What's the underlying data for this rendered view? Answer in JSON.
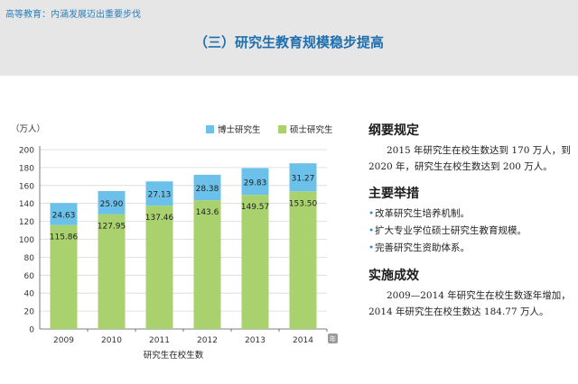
{
  "header": {
    "breadcrumb": "高等教育：内涵发展迈出重要步伐",
    "title": "（三）研究生教育规模稳步提高"
  },
  "chart_data": {
    "type": "bar",
    "stacked": true,
    "ylabel": "（万人）",
    "xlabel": "研究生在校生数",
    "ylim": [
      0,
      200
    ],
    "yticks": [
      0,
      20,
      40,
      60,
      80,
      100,
      120,
      140,
      160,
      180,
      200
    ],
    "categories": [
      "2009",
      "2010",
      "2011",
      "2012",
      "2013",
      "2014"
    ],
    "series": [
      {
        "name": "硕士研究生",
        "color": "#a9d26f",
        "values": [
          115.86,
          127.95,
          137.46,
          143.6,
          149.57,
          153.5
        ],
        "labels": [
          "115.86",
          "127.95",
          "137.46",
          "143.6",
          "149.57",
          "153.50"
        ]
      },
      {
        "name": "博士研究生",
        "color": "#6cc1ea",
        "values": [
          24.63,
          25.9,
          27.13,
          28.38,
          29.83,
          31.27
        ],
        "labels": [
          "24.63",
          "25.90",
          "27.13",
          "28.38",
          "29.83",
          "31.27"
        ]
      }
    ],
    "legend": "top",
    "legend_order": [
      "博士研究生",
      "硕士研究生"
    ],
    "grid": true,
    "axis_end_marker": "年"
  },
  "panel": {
    "sec1_title": "纲要规定",
    "sec1_text": "2015 年研究生在校生数达到 170 万人，到 2020 年，研究生在校生数达到 200 万人。",
    "sec2_title": "主要举措",
    "sec2_items": [
      "改革研究生培养机制。",
      "扩大专业学位硕士研究生教育规模。",
      "完善研究生资助体系。"
    ],
    "bullet_char": "•",
    "sec3_title": "实施成效",
    "sec3_text": "2009—2014 年研究生在校生数逐年增加，2014 年研究生在校生数达 184.77 万人。"
  }
}
